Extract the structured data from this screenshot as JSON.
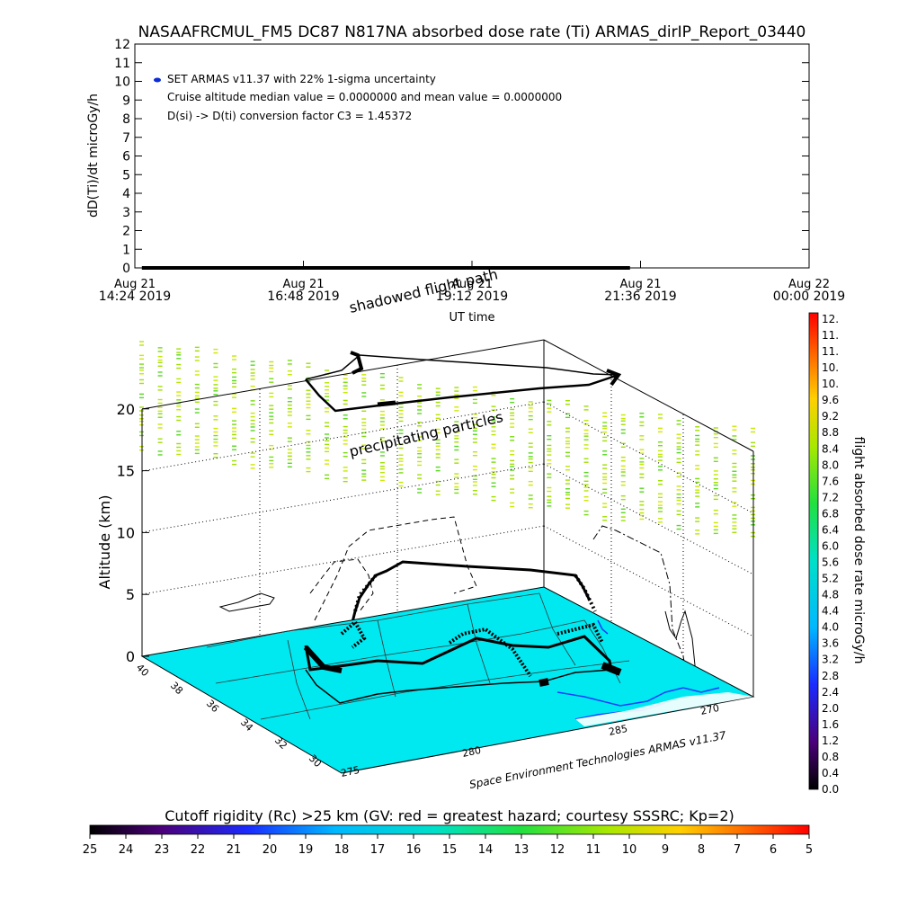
{
  "title": "NASAAFRCMUL_FM5 DC87 N817NA absorbed dose rate (Ti) ARMAS_dirIP_Report_03440",
  "chart_data": [
    {
      "type": "line",
      "ylabel": "dD(Ti)/dt microGy/h",
      "xlabel": "UT time",
      "ylim": [
        0,
        12
      ],
      "yticks": [
        "0",
        "1",
        "2",
        "3",
        "4",
        "5",
        "6",
        "7",
        "8",
        "9",
        "10",
        "11",
        "12"
      ],
      "xticks": [
        {
          "l1": "Aug 21",
          "l2": "14:24 2019"
        },
        {
          "l1": "Aug 21",
          "l2": "16:48 2019"
        },
        {
          "l1": "Aug 21",
          "l2": "19:12 2019"
        },
        {
          "l1": "Aug 21",
          "l2": "21:36 2019"
        },
        {
          "l1": "Aug 22",
          "l2": "00:00 2019"
        }
      ],
      "x_hours_range": [
        14.4,
        24.0
      ],
      "series": [
        {
          "start_hour": 14.5,
          "end_hour": 21.45,
          "value": 0.0
        }
      ],
      "annotations": [
        "SET ARMAS v11.37 with 22% 1-sigma uncertainty",
        "Cruise altitude median value = 0.0000000 and mean value = 0.0000000",
        "D(si) -> D(ti) conversion factor C3 = 1.45372"
      ],
      "legend_color": "#0a2bd6"
    },
    {
      "type": "scatter",
      "ylabel": "Altitude (km)",
      "zticks": [
        "0",
        "5",
        "10",
        "15",
        "20"
      ],
      "lat_ticks": [
        "40",
        "38",
        "36",
        "34",
        "32",
        "30"
      ],
      "lon_ticks": [
        "275",
        "280",
        "285",
        "270"
      ],
      "map_fill": "#00e8f0",
      "labels": {
        "shadowed": "shadowed flight path",
        "precip": "precipitating particles",
        "credit": "Space Environment Technologies ARMAS v11.37"
      }
    }
  ],
  "colorbar_vertical": {
    "label": "flight absorbed dose rate microGy/h",
    "ticks": [
      "12.",
      "11.",
      "11.",
      "10.",
      "10.",
      "9.6",
      "9.2",
      "8.8",
      "8.4",
      "8.0",
      "7.6",
      "7.2",
      "6.8",
      "6.4",
      "6.0",
      "5.6",
      "5.2",
      "4.8",
      "4.4",
      "4.0",
      "3.6",
      "3.2",
      "2.8",
      "2.4",
      "2.0",
      "1.6",
      "1.2",
      "0.8",
      "0.4",
      "0.0"
    ]
  },
  "colorbar_horizontal": {
    "label": "Cutoff rigidity (Rc) >25 km (GV: red = greatest hazard; courtesy SSSRC; Kp=2)",
    "ticks": [
      "25",
      "24",
      "23",
      "22",
      "21",
      "20",
      "19",
      "18",
      "17",
      "16",
      "15",
      "14",
      "13",
      "12",
      "11",
      "10",
      "9",
      "8",
      "7",
      "6",
      "5"
    ]
  }
}
